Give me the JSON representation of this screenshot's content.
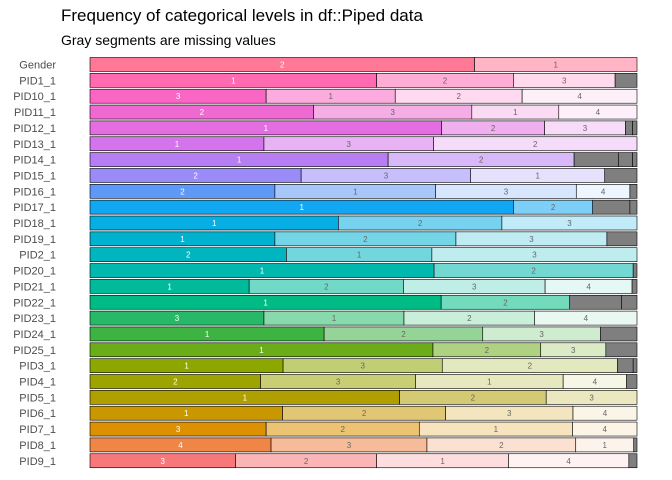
{
  "title": "Frequency of categorical levels in df::Piped data",
  "subtitle": "Gray segments are missing values",
  "chart_data": {
    "type": "bar",
    "orientation": "horizontal",
    "stacked": "proportion",
    "missing_color": "#7f7f7f",
    "rows": [
      {
        "name": "Gender",
        "color": "#ff7896",
        "segments": [
          {
            "level": "2",
            "value": 0.703
          },
          {
            "level": "1",
            "value": 0.297
          }
        ]
      },
      {
        "name": "PID1_1",
        "color": "#ff6ab1",
        "segments": [
          {
            "level": "1",
            "value": 0.524
          },
          {
            "level": "2",
            "value": 0.25
          },
          {
            "level": "3",
            "value": 0.186
          },
          {
            "level": "",
            "value": 0.04
          }
        ]
      },
      {
        "name": "PID10_1",
        "color": "#f966c3",
        "segments": [
          {
            "level": "3",
            "value": 0.322
          },
          {
            "level": "1",
            "value": 0.236
          },
          {
            "level": "2",
            "value": 0.232
          },
          {
            "level": "4",
            "value": 0.21
          }
        ]
      },
      {
        "name": "PID11_1",
        "color": "#ee6ad2",
        "segments": [
          {
            "level": "2",
            "value": 0.409
          },
          {
            "level": "3",
            "value": 0.289
          },
          {
            "level": "1",
            "value": 0.159
          },
          {
            "level": "4",
            "value": 0.143
          }
        ]
      },
      {
        "name": "PID12_1",
        "color": "#e46ee1",
        "segments": [
          {
            "level": "1",
            "value": 0.643
          },
          {
            "level": "2",
            "value": 0.188
          },
          {
            "level": "3",
            "value": 0.148
          },
          {
            "level": "",
            "value": 0.013
          },
          {
            "level": "",
            "value": 0.008
          }
        ]
      },
      {
        "name": "PID13_1",
        "color": "#d474ec",
        "segments": [
          {
            "level": "1",
            "value": 0.318
          },
          {
            "level": "3",
            "value": 0.31
          },
          {
            "level": "2",
            "value": 0.372
          }
        ]
      },
      {
        "name": "PID14_1",
        "color": "#b77ef3",
        "segments": [
          {
            "level": "1",
            "value": 0.545
          },
          {
            "level": "2",
            "value": 0.34
          },
          {
            "level": "",
            "value": 0.081
          },
          {
            "level": "",
            "value": 0.026
          },
          {
            "level": "",
            "value": 0.008
          }
        ]
      },
      {
        "name": "PID15_1",
        "color": "#9a8bf8",
        "segments": [
          {
            "level": "2",
            "value": 0.386
          },
          {
            "level": "3",
            "value": 0.31
          },
          {
            "level": "1",
            "value": 0.245
          },
          {
            "level": "",
            "value": 0.059
          }
        ]
      },
      {
        "name": "PID16_1",
        "color": "#5f99f7",
        "segments": [
          {
            "level": "2",
            "value": 0.338
          },
          {
            "level": "1",
            "value": 0.294
          },
          {
            "level": "3",
            "value": 0.257
          },
          {
            "level": "4",
            "value": 0.098
          },
          {
            "level": "",
            "value": 0.013
          }
        ]
      },
      {
        "name": "PID17_1",
        "color": "#12a7f2",
        "segments": [
          {
            "level": "1",
            "value": 0.774
          },
          {
            "level": "2",
            "value": 0.145
          },
          {
            "level": "",
            "value": 0.068
          },
          {
            "level": "",
            "value": 0.013
          }
        ]
      },
      {
        "name": "PID18_1",
        "color": "#07aee3",
        "segments": [
          {
            "level": "1",
            "value": 0.454
          },
          {
            "level": "2",
            "value": 0.299
          },
          {
            "level": "3",
            "value": 0.247
          }
        ]
      },
      {
        "name": "PID19_1",
        "color": "#00b2cf",
        "segments": [
          {
            "level": "1",
            "value": 0.338
          },
          {
            "level": "2",
            "value": 0.331
          },
          {
            "level": "3",
            "value": 0.276
          },
          {
            "level": "",
            "value": 0.055
          }
        ]
      },
      {
        "name": "PID2_1",
        "color": "#00b5bf",
        "segments": [
          {
            "level": "2",
            "value": 0.359
          },
          {
            "level": "1",
            "value": 0.266
          },
          {
            "level": "3",
            "value": 0.375
          }
        ]
      },
      {
        "name": "PID20_1",
        "color": "#00b8ad",
        "segments": [
          {
            "level": "1",
            "value": 0.629
          },
          {
            "level": "2",
            "value": 0.364
          },
          {
            "level": "",
            "value": 0.007
          }
        ]
      },
      {
        "name": "PID21_1",
        "color": "#00ba9a",
        "segments": [
          {
            "level": "1",
            "value": 0.291
          },
          {
            "level": "2",
            "value": 0.282
          },
          {
            "level": "3",
            "value": 0.259
          },
          {
            "level": "4",
            "value": 0.159
          },
          {
            "level": "",
            "value": 0.009
          }
        ]
      },
      {
        "name": "PID22_1",
        "color": "#00bb84",
        "segments": [
          {
            "level": "1",
            "value": 0.642
          },
          {
            "level": "2",
            "value": 0.235
          },
          {
            "level": "",
            "value": 0.095
          },
          {
            "level": "",
            "value": 0.028
          }
        ]
      },
      {
        "name": "PID23_1",
        "color": "#27b968",
        "segments": [
          {
            "level": "3",
            "value": 0.318
          },
          {
            "level": "1",
            "value": 0.256
          },
          {
            "level": "2",
            "value": 0.239
          },
          {
            "level": "4",
            "value": 0.187
          }
        ]
      },
      {
        "name": "PID24_1",
        "color": "#3db342",
        "segments": [
          {
            "level": "1",
            "value": 0.428
          },
          {
            "level": "2",
            "value": 0.29
          },
          {
            "level": "3",
            "value": 0.215
          },
          {
            "level": "",
            "value": 0.067
          }
        ]
      },
      {
        "name": "PID25_1",
        "color": "#6bad19",
        "segments": [
          {
            "level": "1",
            "value": 0.627
          },
          {
            "level": "2",
            "value": 0.197
          },
          {
            "level": "3",
            "value": 0.119
          },
          {
            "level": "",
            "value": 0.057
          }
        ]
      },
      {
        "name": "PID3_1",
        "color": "#8ca800",
        "segments": [
          {
            "level": "1",
            "value": 0.353
          },
          {
            "level": "3",
            "value": 0.291
          },
          {
            "level": "2",
            "value": 0.32
          },
          {
            "level": "",
            "value": 0.029
          },
          {
            "level": "",
            "value": 0.007
          }
        ]
      },
      {
        "name": "PID4_1",
        "color": "#9da400",
        "segments": [
          {
            "level": "2",
            "value": 0.312
          },
          {
            "level": "3",
            "value": 0.283
          },
          {
            "level": "1",
            "value": 0.27
          },
          {
            "level": "4",
            "value": 0.116
          },
          {
            "level": "",
            "value": 0.019
          }
        ]
      },
      {
        "name": "PID5_1",
        "color": "#b09f00",
        "segments": [
          {
            "level": "1",
            "value": 0.566
          },
          {
            "level": "2",
            "value": 0.268
          },
          {
            "level": "3",
            "value": 0.166
          }
        ]
      },
      {
        "name": "PID6_1",
        "color": "#c99800",
        "segments": [
          {
            "level": "1",
            "value": 0.352
          },
          {
            "level": "2",
            "value": 0.298
          },
          {
            "level": "3",
            "value": 0.233
          },
          {
            "level": "4",
            "value": 0.117
          }
        ]
      },
      {
        "name": "PID7_1",
        "color": "#dd9100",
        "segments": [
          {
            "level": "3",
            "value": 0.322
          },
          {
            "level": "2",
            "value": 0.28
          },
          {
            "level": "1",
            "value": 0.28
          },
          {
            "level": "4",
            "value": 0.118
          }
        ]
      },
      {
        "name": "PID8_1",
        "color": "#ef8547",
        "segments": [
          {
            "level": "4",
            "value": 0.331
          },
          {
            "level": "3",
            "value": 0.285
          },
          {
            "level": "2",
            "value": 0.272
          },
          {
            "level": "1",
            "value": 0.106
          },
          {
            "level": "",
            "value": 0.006
          }
        ]
      },
      {
        "name": "PID9_1",
        "color": "#f7787a",
        "segments": [
          {
            "level": "3",
            "value": 0.266
          },
          {
            "level": "2",
            "value": 0.258
          },
          {
            "level": "1",
            "value": 0.241
          },
          {
            "level": "4",
            "value": 0.22
          },
          {
            "level": "",
            "value": 0.015
          }
        ]
      }
    ]
  }
}
